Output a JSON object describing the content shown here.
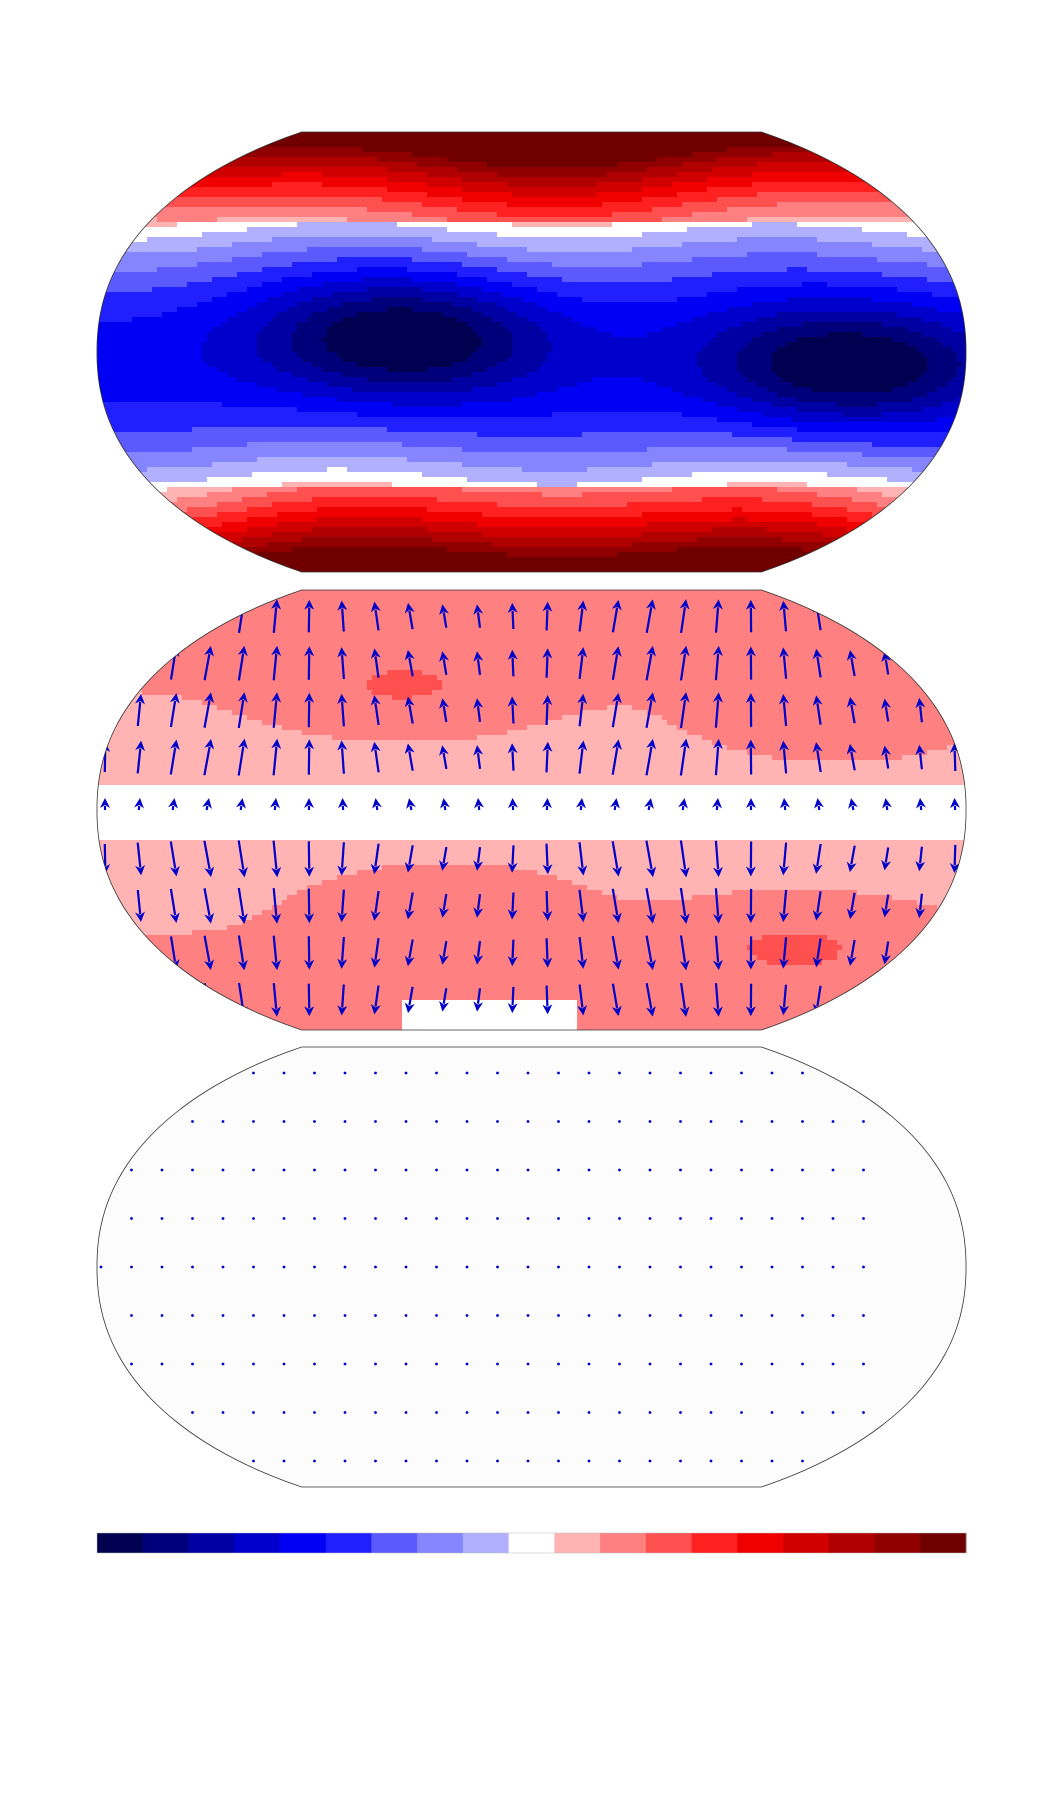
{
  "figure": {
    "panels": [
      {
        "name": "panel-top",
        "field": "zonal-wave-temperature",
        "arrows": false
      },
      {
        "name": "panel-middle",
        "field": "anomaly-positive",
        "arrows": true,
        "arrow_strength": "large"
      },
      {
        "name": "panel-bottom",
        "field": "near-zero",
        "arrows": true,
        "arrow_strength": "tiny"
      }
    ],
    "projection": "robinson-like",
    "arrow_color": "#0000c8"
  },
  "colorbar": {
    "colors": [
      "#000050",
      "#00007a",
      "#0000a3",
      "#0000cc",
      "#0000f5",
      "#2020ff",
      "#5a5aff",
      "#8585ff",
      "#b0b0ff",
      "#ffffff",
      "#ffb3b3",
      "#ff8080",
      "#ff5050",
      "#ff2020",
      "#f00000",
      "#d00000",
      "#b00000",
      "#900000",
      "#700000"
    ],
    "orientation": "horizontal",
    "tick_labels": []
  }
}
